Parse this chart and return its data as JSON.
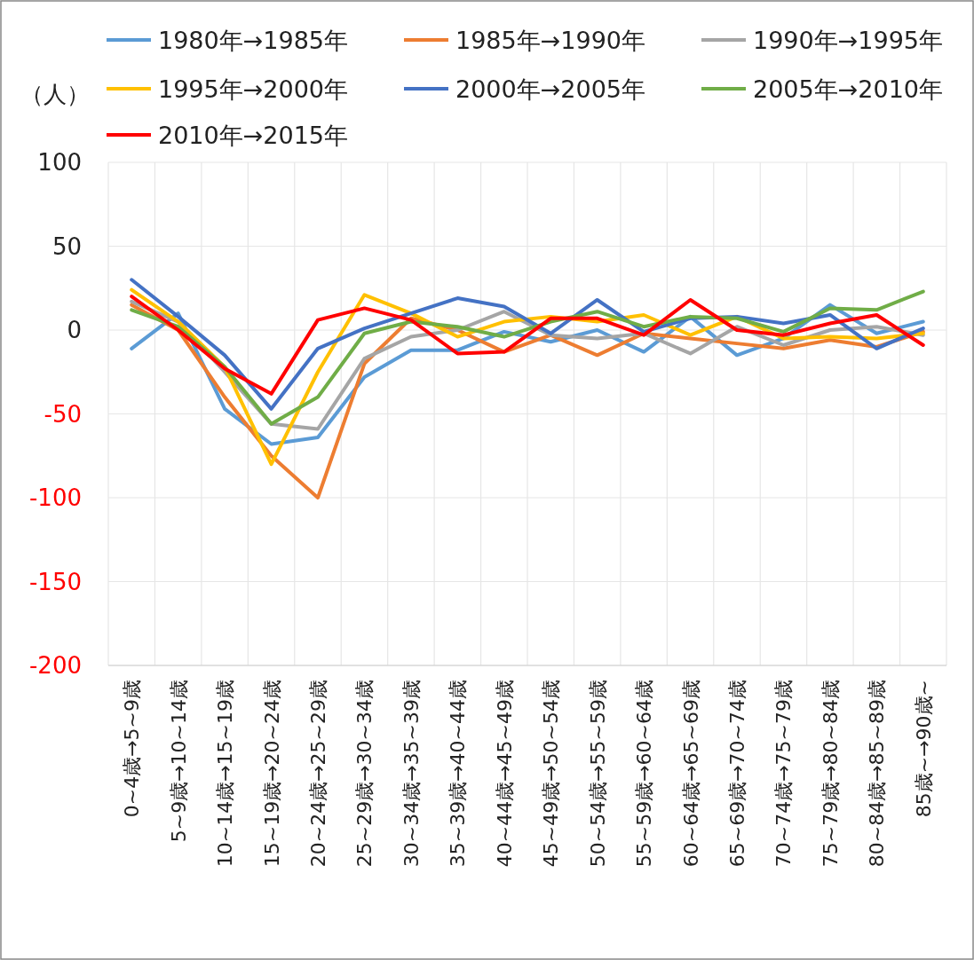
{
  "chart_data": {
    "type": "line",
    "ylabel": "（人）",
    "categories": [
      "0~4歳→5~9歳",
      "5~9歳→10~14歳",
      "10~14歳→15~19歳",
      "15~19歳→20~24歳",
      "20~24歳→25~29歳",
      "25~29歳→30~34歳",
      "30~34歳→35~39歳",
      "35~39歳→40~44歳",
      "40~44歳→45~49歳",
      "45~49歳→50~54歳",
      "50~54歳→55~59歳",
      "55~59歳→60~64歳",
      "60~64歳→65~69歳",
      "65~69歳→70~74歳",
      "70~74歳→75~79歳",
      "75~79歳→80~84歳",
      "80~84歳→85~89歳",
      "85歳~→90歳~"
    ],
    "series": [
      {
        "name": "1980年→1985年",
        "color": "#5b9bd5",
        "values": [
          -11,
          10,
          -47,
          -68,
          -64,
          -28,
          -12,
          -12,
          -1,
          -7,
          0,
          -13,
          8,
          -15,
          -5,
          15,
          -2,
          5
        ]
      },
      {
        "name": "1985年→1990年",
        "color": "#ed7d31",
        "values": [
          15,
          0,
          -40,
          -75,
          -100,
          -20,
          7,
          0,
          -13,
          -3,
          -15,
          -2,
          -5,
          -8,
          -11,
          -6,
          -10,
          -1
        ]
      },
      {
        "name": "1990年→1995年",
        "color": "#a5a5a5",
        "values": [
          17,
          5,
          -25,
          -56,
          -59,
          -17,
          -4,
          0,
          11,
          -3,
          -5,
          -2,
          -14,
          2,
          -9,
          0,
          2,
          -3
        ]
      },
      {
        "name": "1995年→2000年",
        "color": "#ffc000",
        "values": [
          24,
          5,
          -22,
          -80,
          -25,
          21,
          10,
          -4,
          5,
          8,
          5,
          9,
          -3,
          8,
          -5,
          -4,
          -5,
          -2
        ]
      },
      {
        "name": "2000年→2005年",
        "color": "#4472c4",
        "values": [
          30,
          8,
          -15,
          -47,
          -11,
          1,
          10,
          19,
          14,
          -2,
          18,
          -1,
          7,
          8,
          4,
          9,
          -11,
          1
        ]
      },
      {
        "name": "2005年→2010年",
        "color": "#70ad47",
        "values": [
          12,
          2,
          -22,
          -56,
          -40,
          -2,
          5,
          2,
          -4,
          5,
          11,
          2,
          8,
          7,
          -1,
          13,
          12,
          23
        ]
      },
      {
        "name": "2010年→2015年",
        "color": "#ff0000",
        "values": [
          20,
          0,
          -23,
          -38,
          6,
          13,
          6,
          -14,
          -13,
          7,
          7,
          -3,
          18,
          0,
          -3,
          4,
          9,
          -9
        ]
      }
    ],
    "ylim": [
      -200,
      100
    ],
    "yticks": [
      -200,
      -150,
      -100,
      -50,
      0,
      50,
      100
    ],
    "grid": true,
    "legend": "top",
    "marker": "none",
    "line_style": "solid"
  }
}
